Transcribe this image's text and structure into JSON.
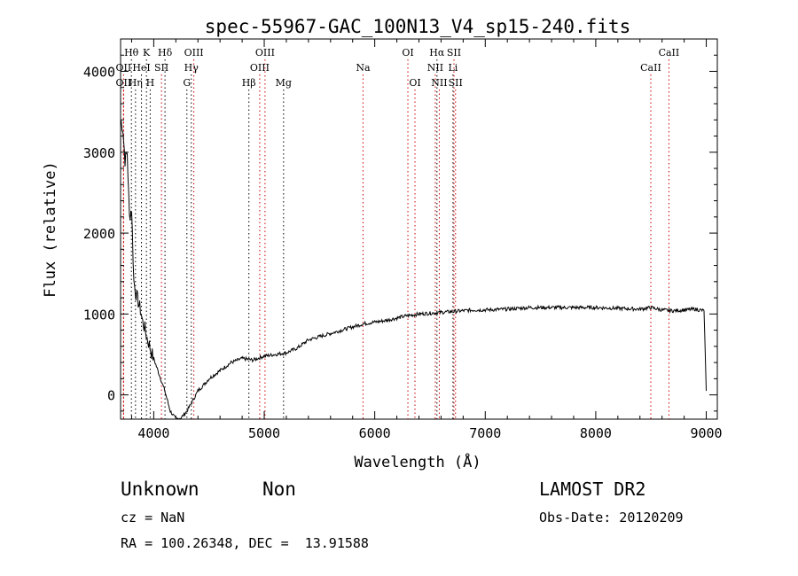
{
  "chart_data": {
    "type": "line",
    "title": "spec-55967-GAC_100N13_V4_sp15-240.fits",
    "xlabel": "Wavelength (Å)",
    "ylabel": "Flux (relative)",
    "xlim": [
      3700,
      9100
    ],
    "ylim": [
      -300,
      4400
    ],
    "xticks": [
      4000,
      5000,
      6000,
      7000,
      8000,
      9000
    ],
    "yticks": [
      0,
      1000,
      2000,
      3000,
      4000
    ],
    "grid": false,
    "series": [
      {
        "x": [
          3700,
          3720,
          3740,
          3760,
          3780,
          3800,
          3820,
          3840,
          3860,
          3880,
          3900,
          3920,
          3940,
          3960,
          3980,
          4000,
          4050,
          4100,
          4150,
          4200,
          4250,
          4300,
          4350,
          4400,
          4450,
          4500,
          4600,
          4700,
          4800,
          4900,
          5000,
          5100,
          5200,
          5300,
          5400,
          5500,
          5600,
          5700,
          5800,
          5900,
          6000,
          6100,
          6200,
          6300,
          6400,
          6500,
          6600,
          6700,
          6800,
          6900,
          7000,
          7200,
          7400,
          7600,
          7800,
          8000,
          8200,
          8400,
          8500,
          8600,
          8700,
          8800,
          8900,
          8980,
          9000
        ],
        "y": [
          3400,
          3300,
          2900,
          3000,
          2200,
          2300,
          1400,
          1250,
          1150,
          1050,
          900,
          820,
          700,
          620,
          520,
          450,
          250,
          50,
          -200,
          -300,
          -280,
          -200,
          -80,
          50,
          120,
          200,
          300,
          400,
          450,
          430,
          480,
          500,
          520,
          580,
          680,
          720,
          760,
          800,
          840,
          880,
          900,
          920,
          950,
          980,
          1000,
          1010,
          1020,
          1030,
          1040,
          1050,
          1050,
          1060,
          1080,
          1080,
          1080,
          1080,
          1070,
          1060,
          1080,
          1050,
          1040,
          1050,
          1060,
          1040,
          50
        ]
      }
    ],
    "lines": [
      {
        "label": "Hθ",
        "x": 3798,
        "row": 1,
        "color": "#000000"
      },
      {
        "label": "OII",
        "x": 3727,
        "row": 2,
        "color": "#000000"
      },
      {
        "label": "OII",
        "x": 3727,
        "row": 3,
        "color": "#000000"
      },
      {
        "label": "Hη",
        "x": 3835,
        "row": 3,
        "color": "#000000"
      },
      {
        "label": "HeI",
        "x": 3889,
        "row": 2,
        "color": "#000000"
      },
      {
        "label": "K",
        "x": 3934,
        "row": 1,
        "color": "#000000"
      },
      {
        "label": "H",
        "x": 3968,
        "row": 3,
        "color": "#000000"
      },
      {
        "label": "SII",
        "x": 4070,
        "row": 2,
        "color": "#000000"
      },
      {
        "label": "Hδ",
        "x": 4102,
        "row": 1,
        "color": "#000000"
      },
      {
        "label": "OIII",
        "x": 4363,
        "row": 1,
        "color": "#000000"
      },
      {
        "label": "Hγ",
        "x": 4340,
        "row": 2,
        "color": "#000000"
      },
      {
        "label": "G",
        "x": 4300,
        "row": 3,
        "color": "#000000"
      },
      {
        "label": "Hβ",
        "x": 4861,
        "row": 3,
        "color": "#000000"
      },
      {
        "label": "OIII",
        "x": 4959,
        "row": 2,
        "color": "#000000"
      },
      {
        "label": "OIII",
        "x": 5007,
        "row": 1,
        "color": "#000000"
      },
      {
        "label": "Mg",
        "x": 5175,
        "row": 3,
        "color": "#000000"
      },
      {
        "label": "Na",
        "x": 5894,
        "row": 2,
        "color": "#000000"
      },
      {
        "label": "OI",
        "x": 6300,
        "row": 1,
        "color": "#000000"
      },
      {
        "label": "OI",
        "x": 6364,
        "row": 3,
        "color": "#000000"
      },
      {
        "label": "Hα",
        "x": 6563,
        "row": 1,
        "color": "#000000"
      },
      {
        "label": "NII",
        "x": 6548,
        "row": 2,
        "color": "#000000"
      },
      {
        "label": "NII",
        "x": 6584,
        "row": 3,
        "color": "#000000"
      },
      {
        "label": "Li",
        "x": 6708,
        "row": 2,
        "color": "#000000"
      },
      {
        "label": "SII",
        "x": 6717,
        "row": 1,
        "color": "#000000"
      },
      {
        "label": "SII",
        "x": 6731,
        "row": 3,
        "color": "#000000"
      },
      {
        "label": "CaII",
        "x": 8498,
        "row": 2,
        "color": "#000000"
      },
      {
        "label": "CaII",
        "x": 8662,
        "row": 1,
        "color": "#000000"
      }
    ],
    "line_color_emission": "#cc0000",
    "line_color_absorption": "#000000"
  },
  "info": {
    "classification": "Unknown",
    "subclass": "Non",
    "survey": "LAMOST DR2",
    "cz": "cz = NaN",
    "obs_date": "Obs-Date: 20120209",
    "coords": "RA = 100.26348, DEC =  13.91588"
  }
}
